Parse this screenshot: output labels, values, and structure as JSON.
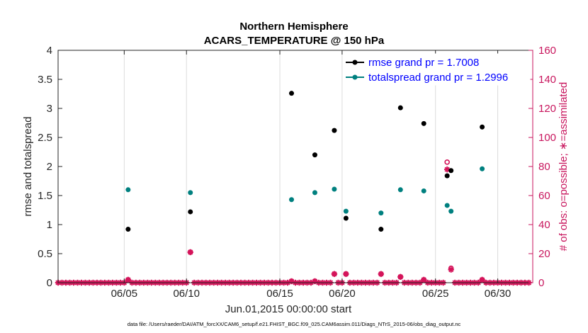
{
  "chart_data": {
    "type": "scatter",
    "title": "Northern Hemisphere",
    "subtitle": "ACARS_TEMPERATURE @ 150 hPa",
    "xlabel": "Jun.01,2015 00:00:00 start",
    "ylabel_left": "rmse and totalspread",
    "ylabel_right": "# of obs: o=possible; ∗=assimilated",
    "footnote": "data file: /Users/raeder/DAI/ATM_forcXX/CAM6_setup/f.e21.FHIST_BGC.f09_025.CAM6assim.011/Diags_NTrS_2015-06/obs_diag_output.nc",
    "xlim": [
      1,
      31.5
    ],
    "ylim_left": [
      0,
      4
    ],
    "ylim_right": [
      0,
      160
    ],
    "x_ticks": [
      5.25,
      9.25,
      15.25,
      19.25,
      25.25,
      29.25
    ],
    "x_tick_labels": [
      "06/05",
      "06/10",
      "06/15",
      "06/20",
      "06/25",
      "06/30"
    ],
    "x_gridlines": [
      5.25,
      9.25,
      15.25,
      19.25,
      25.25,
      29.25
    ],
    "y_ticks_left": [
      0,
      0.5,
      1,
      1.5,
      2,
      2.5,
      3,
      3.5,
      4
    ],
    "y_tick_labels_left": [
      "0",
      "0.5",
      "1",
      "1.5",
      "2",
      "2.5",
      "3",
      "3.5",
      "4"
    ],
    "y_ticks_right": [
      0,
      20,
      40,
      60,
      80,
      100,
      120,
      140,
      160
    ],
    "y_tick_labels_right": [
      "0",
      "20",
      "40",
      "60",
      "80",
      "100",
      "120",
      "140",
      "160"
    ],
    "colors": {
      "rmse": "#000000",
      "spread": "#00807f",
      "obs": "#d4145a",
      "legend_text": "#0000ff",
      "right_axis": "#c8155d"
    },
    "series": [
      {
        "name": "rmse grand pr = 1.7008",
        "axis": "left",
        "x": [
          5.5,
          9.5,
          16.0,
          17.5,
          18.75,
          19.5,
          21.75,
          23.0,
          24.5,
          26.0,
          26.25,
          28.25
        ],
        "values": [
          0.92,
          1.22,
          3.26,
          2.2,
          2.62,
          1.11,
          0.92,
          3.01,
          2.74,
          1.84,
          1.93,
          2.68
        ]
      },
      {
        "name": "totalspread grand pr = 1.2996",
        "axis": "left",
        "x": [
          5.5,
          9.5,
          16.0,
          17.5,
          18.75,
          19.5,
          21.75,
          23.0,
          24.5,
          26.0,
          26.25,
          28.25
        ],
        "values": [
          1.6,
          1.55,
          1.43,
          1.55,
          1.61,
          1.23,
          1.2,
          1.6,
          1.58,
          1.33,
          1.23,
          1.96
        ]
      },
      {
        "name": "obs possible",
        "axis": "right",
        "x": [
          5.5,
          9.5,
          16.0,
          17.5,
          18.75,
          19.5,
          21.75,
          23.0,
          24.5,
          26.0,
          26.25,
          28.25
        ],
        "values": [
          2,
          21,
          1,
          1,
          6,
          6,
          6,
          4,
          2,
          83,
          10,
          2
        ]
      },
      {
        "name": "obs assimilated",
        "axis": "right",
        "x": [
          5.5,
          9.5,
          16.0,
          17.5,
          18.75,
          19.5,
          21.75,
          23.0,
          24.5,
          26.0,
          26.25,
          28.25
        ],
        "values": [
          2,
          21,
          1,
          1,
          6,
          6,
          6,
          4,
          2,
          78,
          9,
          2
        ]
      }
    ],
    "baseline_markers": {
      "axis": "right",
      "value": 0,
      "x_start": 1.0,
      "x_end": 31.25,
      "step": 0.25
    }
  }
}
